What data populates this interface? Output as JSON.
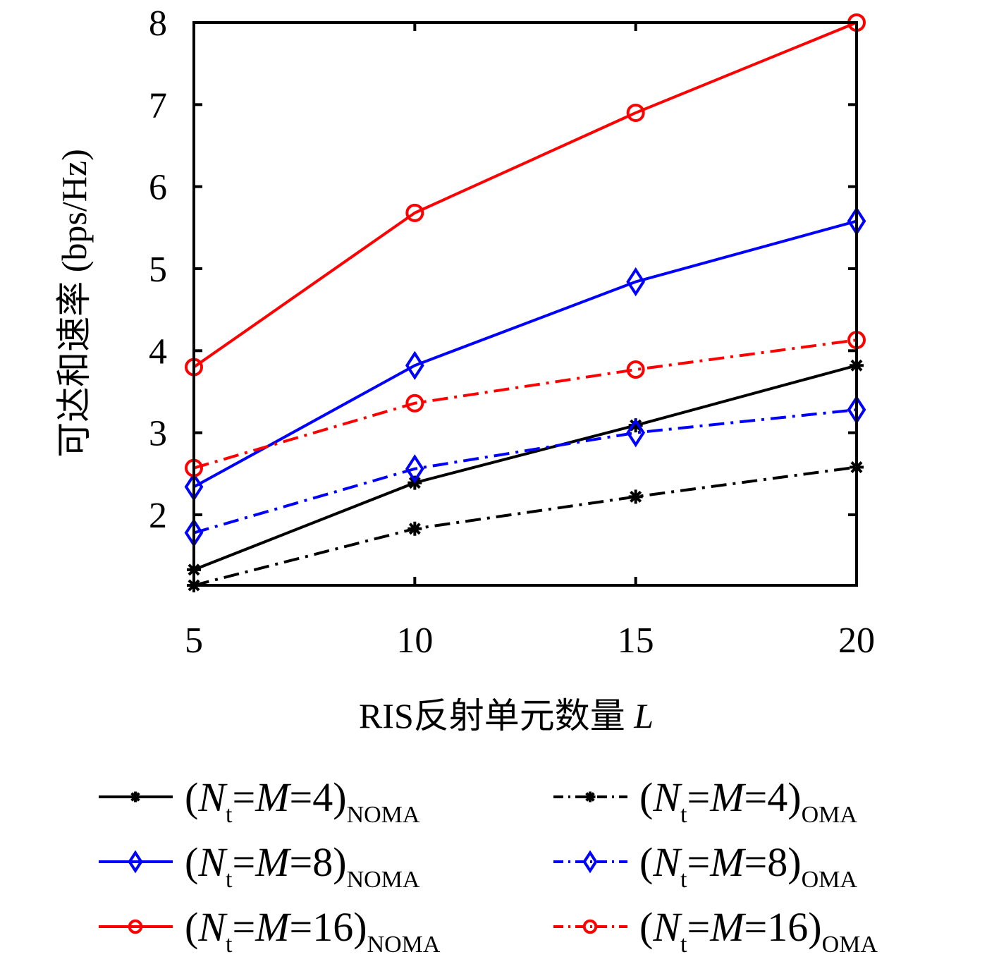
{
  "chart_data": {
    "type": "line",
    "title": "",
    "xlabel": "RIS反射单元数量",
    "xlabel_var": "L",
    "ylabel": "可达和速率 (bps/Hz)",
    "x": [
      5,
      10,
      15,
      20
    ],
    "xticks": [
      5,
      10,
      15,
      20
    ],
    "xtick_labels": [
      "5",
      "10",
      "15",
      "20"
    ],
    "yticks": [
      2,
      3,
      4,
      5,
      6,
      7,
      8
    ],
    "ytick_labels": [
      "2",
      "3",
      "4",
      "5",
      "6",
      "7",
      "8"
    ],
    "xlim": [
      5,
      20
    ],
    "ylim": [
      1.14,
      8
    ],
    "grid": false,
    "legend_position": "below",
    "series": [
      {
        "name": "(Nt=M=4)NOMA",
        "label_main": "4",
        "label_sub": "NOMA",
        "color": "#000000",
        "style": "solid",
        "marker": "asterisk",
        "values": [
          1.33,
          2.39,
          3.09,
          3.82
        ]
      },
      {
        "name": "(Nt=M=8)NOMA",
        "label_main": "8",
        "label_sub": "NOMA",
        "color": "#0000ff",
        "style": "solid",
        "marker": "diamond",
        "values": [
          2.34,
          3.82,
          4.84,
          5.58
        ]
      },
      {
        "name": "(Nt=M=16)NOMA",
        "label_main": "16",
        "label_sub": "NOMA",
        "color": "#ff0000",
        "style": "solid",
        "marker": "circle",
        "values": [
          3.8,
          5.68,
          6.9,
          8.0
        ]
      },
      {
        "name": "(Nt=M=4)OMA",
        "label_main": "4",
        "label_sub": "OMA",
        "color": "#000000",
        "style": "dashdot",
        "marker": "asterisk",
        "values": [
          1.14,
          1.83,
          2.22,
          2.58
        ]
      },
      {
        "name": "(Nt=M=8)OMA",
        "label_main": "8",
        "label_sub": "OMA",
        "color": "#0000ff",
        "style": "dashdot",
        "marker": "diamond",
        "values": [
          1.78,
          2.56,
          3.0,
          3.28
        ]
      },
      {
        "name": "(Nt=M=16)OMA",
        "label_main": "16",
        "label_sub": "OMA",
        "color": "#ff0000",
        "style": "dashdot",
        "marker": "circle",
        "values": [
          2.57,
          3.36,
          3.77,
          4.13
        ]
      }
    ],
    "legend_prefix": {
      "open": "(",
      "var_n": "N",
      "var_n_sub": "t",
      "eq1": "=",
      "var_m": "M",
      "eq2": "=",
      "close": ")"
    }
  }
}
